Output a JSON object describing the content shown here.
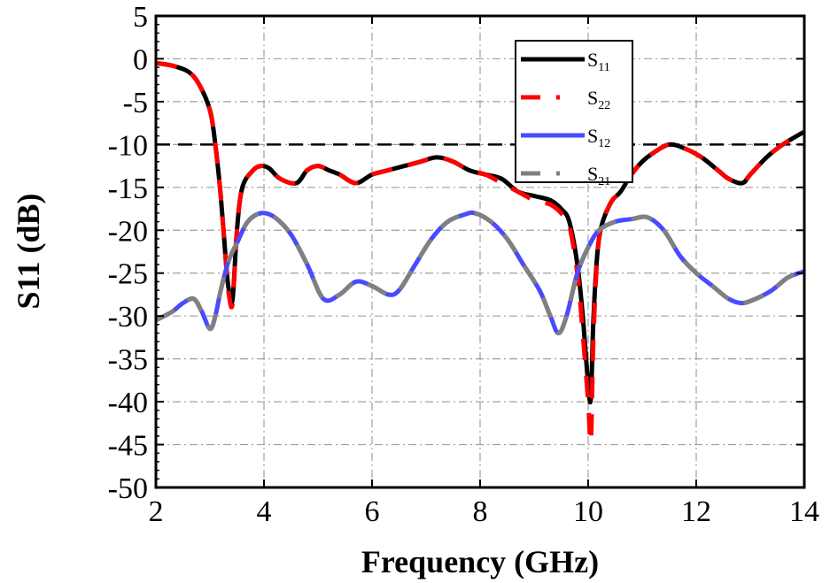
{
  "chart_data": {
    "type": "line",
    "title": "",
    "xlabel": "Frequency (GHz)",
    "ylabel": "S11 (dB)",
    "xlim": [
      2,
      14
    ],
    "ylim": [
      -50,
      5
    ],
    "xticks": [
      2,
      4,
      6,
      8,
      10,
      12,
      14
    ],
    "yticks": [
      5,
      0,
      -5,
      -10,
      -15,
      -20,
      -25,
      -30,
      -35,
      -40,
      -45,
      -50
    ],
    "xtick_labels": [
      "2",
      "4",
      "6",
      "8",
      "10",
      "12",
      "14"
    ],
    "ytick_labels": [
      "5",
      "0",
      "-5",
      "-10",
      "-15",
      "-20",
      "-25",
      "-30",
      "-35",
      "-40",
      "-45",
      "-50"
    ],
    "grid": true,
    "reference_line": {
      "y": -10,
      "style": "dashed",
      "color": "#000000"
    },
    "legend": {
      "position": "top-right"
    },
    "series": [
      {
        "name": "S11",
        "base": "S",
        "sub": "11",
        "color": "#000000",
        "dash": "solid",
        "x": [
          2.0,
          2.3,
          2.6,
          2.8,
          3.0,
          3.1,
          3.2,
          3.3,
          3.35,
          3.42,
          3.5,
          3.6,
          3.8,
          3.95,
          4.1,
          4.3,
          4.6,
          4.8,
          5.0,
          5.2,
          5.4,
          5.7,
          6.0,
          6.3,
          6.6,
          6.9,
          7.2,
          7.5,
          7.8,
          8.1,
          8.4,
          8.7,
          9.0,
          9.3,
          9.5,
          9.65,
          9.8,
          9.9,
          10.0,
          10.05,
          10.1,
          10.2,
          10.4,
          10.6,
          10.8,
          11.0,
          11.2,
          11.5,
          11.8,
          12.1,
          12.4,
          12.6,
          12.85,
          13.0,
          13.3,
          13.6,
          14.0
        ],
        "values": [
          -0.5,
          -0.8,
          -1.5,
          -3.0,
          -6.0,
          -10.0,
          -16.0,
          -24.0,
          -27.0,
          -28.0,
          -20.0,
          -15.0,
          -13.0,
          -12.5,
          -12.8,
          -14.0,
          -14.5,
          -13.0,
          -12.5,
          -13.0,
          -13.5,
          -14.5,
          -13.5,
          -13.0,
          -12.5,
          -12.0,
          -11.5,
          -12.0,
          -13.0,
          -13.5,
          -14.0,
          -15.5,
          -16.0,
          -16.5,
          -17.5,
          -19.0,
          -24.0,
          -30.0,
          -38.0,
          -39.5,
          -30.0,
          -21.0,
          -17.0,
          -15.5,
          -13.5,
          -12.0,
          -11.0,
          -10.0,
          -10.5,
          -11.5,
          -13.0,
          -14.0,
          -14.5,
          -13.5,
          -11.5,
          -10.0,
          -8.5
        ]
      },
      {
        "name": "S22",
        "base": "S",
        "sub": "22",
        "color": "#ff0000",
        "dash": "dashed",
        "x": [
          2.0,
          2.3,
          2.6,
          2.8,
          3.0,
          3.1,
          3.2,
          3.3,
          3.35,
          3.42,
          3.5,
          3.6,
          3.8,
          3.95,
          4.1,
          4.3,
          4.6,
          4.8,
          5.0,
          5.2,
          5.4,
          5.7,
          6.0,
          6.3,
          6.6,
          6.9,
          7.2,
          7.5,
          7.8,
          8.1,
          8.4,
          8.7,
          9.0,
          9.3,
          9.5,
          9.65,
          9.8,
          9.9,
          10.0,
          10.05,
          10.1,
          10.2,
          10.4,
          10.6,
          10.8,
          11.0,
          11.2,
          11.5,
          11.8,
          12.1,
          12.4,
          12.6,
          12.85,
          13.0,
          13.3,
          13.6,
          14.0
        ],
        "values": [
          -0.5,
          -0.8,
          -1.5,
          -3.0,
          -6.0,
          -10.0,
          -16.0,
          -24.0,
          -27.5,
          -28.5,
          -20.0,
          -15.0,
          -13.0,
          -12.5,
          -12.8,
          -14.0,
          -14.5,
          -13.0,
          -12.5,
          -13.0,
          -13.5,
          -14.5,
          -13.5,
          -13.0,
          -12.5,
          -12.0,
          -11.5,
          -12.0,
          -13.0,
          -13.5,
          -14.5,
          -15.5,
          -16.5,
          -17.0,
          -18.0,
          -19.5,
          -25.0,
          -32.0,
          -40.0,
          -44.5,
          -32.0,
          -21.0,
          -17.0,
          -15.5,
          -13.5,
          -12.0,
          -11.0,
          -10.0,
          -10.5,
          -11.5,
          -13.0,
          -14.0,
          -14.5,
          -13.5,
          -11.5,
          -10.0,
          -8.5
        ]
      },
      {
        "name": "S12",
        "base": "S",
        "sub": "12",
        "color": "#4a4aff",
        "dash": "solid",
        "x": [
          2.0,
          2.3,
          2.5,
          2.7,
          2.85,
          3.0,
          3.1,
          3.2,
          3.35,
          3.5,
          3.7,
          3.95,
          4.2,
          4.5,
          4.8,
          5.1,
          5.4,
          5.7,
          6.0,
          6.3,
          6.5,
          6.8,
          7.1,
          7.4,
          7.7,
          7.9,
          8.2,
          8.5,
          8.8,
          9.1,
          9.3,
          9.45,
          9.6,
          9.8,
          10.0,
          10.2,
          10.5,
          10.8,
          11.1,
          11.4,
          11.7,
          12.0,
          12.3,
          12.6,
          12.85,
          13.1,
          13.4,
          13.7,
          14.0
        ],
        "values": [
          -30.5,
          -29.5,
          -28.5,
          -28.0,
          -29.5,
          -31.5,
          -30.0,
          -27.0,
          -23.5,
          -21.5,
          -19.0,
          -18.0,
          -18.5,
          -20.5,
          -24.0,
          -28.0,
          -27.5,
          -26.0,
          -26.5,
          -27.5,
          -27.0,
          -24.0,
          -21.0,
          -19.0,
          -18.2,
          -18.0,
          -19.0,
          -21.0,
          -24.0,
          -27.0,
          -30.0,
          -32.0,
          -30.0,
          -25.0,
          -22.0,
          -20.0,
          -19.0,
          -18.7,
          -18.5,
          -20.0,
          -23.0,
          -25.0,
          -26.5,
          -28.0,
          -28.5,
          -28.0,
          -27.0,
          -25.5,
          -24.8
        ]
      },
      {
        "name": "S21",
        "base": "S",
        "sub": "21",
        "color": "#808080",
        "dash": "dashed",
        "x": [
          2.0,
          2.3,
          2.5,
          2.7,
          2.85,
          3.0,
          3.1,
          3.2,
          3.35,
          3.5,
          3.7,
          3.95,
          4.2,
          4.5,
          4.8,
          5.1,
          5.4,
          5.7,
          6.0,
          6.3,
          6.5,
          6.8,
          7.1,
          7.4,
          7.7,
          7.9,
          8.2,
          8.5,
          8.8,
          9.1,
          9.3,
          9.45,
          9.6,
          9.8,
          10.0,
          10.2,
          10.5,
          10.8,
          11.1,
          11.4,
          11.7,
          12.0,
          12.3,
          12.6,
          12.85,
          13.1,
          13.4,
          13.7,
          14.0
        ],
        "values": [
          -30.5,
          -29.5,
          -28.5,
          -28.0,
          -29.5,
          -31.5,
          -30.0,
          -27.0,
          -23.5,
          -21.5,
          -19.0,
          -18.0,
          -18.5,
          -20.5,
          -24.0,
          -28.0,
          -27.5,
          -26.0,
          -26.5,
          -27.5,
          -27.0,
          -24.0,
          -21.0,
          -19.0,
          -18.2,
          -18.0,
          -19.0,
          -21.0,
          -24.0,
          -27.0,
          -30.0,
          -32.0,
          -30.0,
          -25.0,
          -22.0,
          -20.0,
          -19.0,
          -18.7,
          -18.5,
          -20.0,
          -23.0,
          -25.0,
          -26.5,
          -28.0,
          -28.5,
          -28.0,
          -27.0,
          -25.5,
          -24.8
        ]
      }
    ]
  }
}
